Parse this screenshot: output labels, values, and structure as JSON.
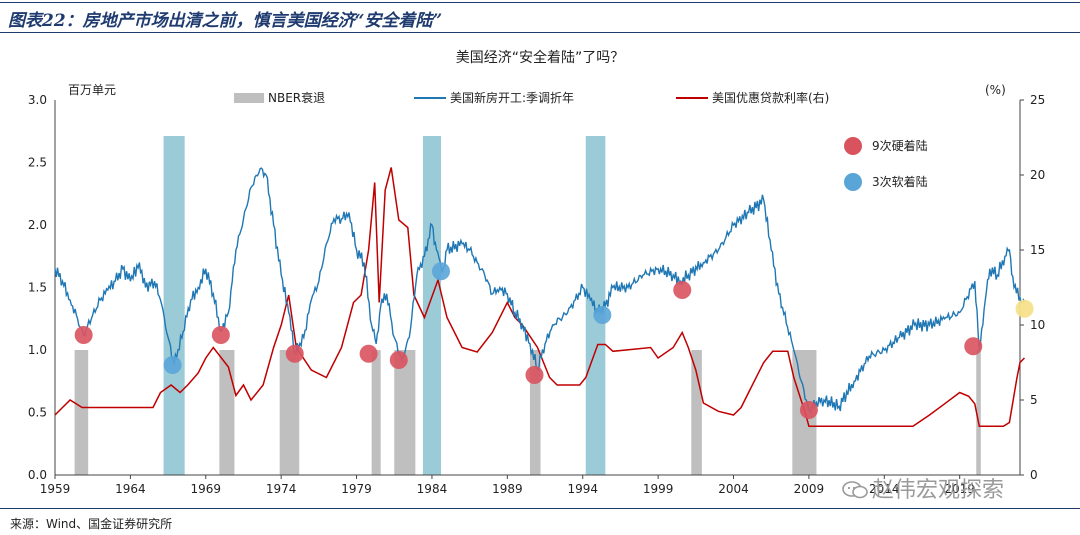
{
  "figure_title": "图表22：房地产市场出清之前，慎言美国经济“安全着陆”",
  "source": "来源：Wind、国金证券研究所",
  "watermark": "赵伟宏观探索",
  "watermark_icon": "wechat-icon",
  "colors": {
    "housing": "#1f77b4",
    "mortgage": "#c00000",
    "recession": "#bfbfbf",
    "soft_band": "#9ccbd8",
    "hard_dot": "#d9535f",
    "soft_dot": "#5aa5d8",
    "current_dot": "#f5e08a"
  },
  "chart_data": {
    "type": "line",
    "title": "美国经济“安全着陆”了吗？",
    "left_axis_label": "百万单元",
    "right_axis_label": "(%)",
    "left_ylim": [
      0,
      3.0
    ],
    "right_ylim": [
      0,
      25
    ],
    "left_ticks": [
      "0.0",
      "0.5",
      "1.0",
      "1.5",
      "2.0",
      "2.5",
      "3.0"
    ],
    "right_ticks": [
      "0",
      "5",
      "10",
      "15",
      "20",
      "25"
    ],
    "x_range": [
      1959,
      2023
    ],
    "x_ticks": [
      "1959",
      "1964",
      "1969",
      "1974",
      "1979",
      "1984",
      "1989",
      "1994",
      "1999",
      "2004",
      "2009",
      "2014",
      "2019"
    ],
    "legend": {
      "recession": "NBER衰退",
      "housing": "美国新房开工:季调折年",
      "mortgage": "美国优惠贷款利率(右)",
      "hard": "9次硬着陆",
      "soft": "3次软着陆"
    },
    "recessions": [
      [
        1960.3,
        1961.2
      ],
      [
        1969.9,
        1970.9
      ],
      [
        1973.9,
        1975.2
      ],
      [
        1980.0,
        1980.6
      ],
      [
        1981.5,
        1982.9
      ],
      [
        1990.5,
        1991.2
      ],
      [
        2001.2,
        2001.9
      ],
      [
        2007.9,
        2009.5
      ],
      [
        2020.1,
        2020.4
      ]
    ],
    "soft_landings": [
      [
        1966.2,
        1967.6
      ],
      [
        1983.4,
        1984.6
      ],
      [
        1994.2,
        1995.5
      ]
    ],
    "housing_series": {
      "name": "美国新房开工:季调折年",
      "points": [
        [
          1959.0,
          1.65
        ],
        [
          1959.5,
          1.55
        ],
        [
          1960.0,
          1.4
        ],
        [
          1960.5,
          1.25
        ],
        [
          1960.9,
          1.12
        ],
        [
          1961.5,
          1.28
        ],
        [
          1962.0,
          1.4
        ],
        [
          1962.5,
          1.48
        ],
        [
          1963.0,
          1.55
        ],
        [
          1963.5,
          1.65
        ],
        [
          1964.0,
          1.55
        ],
        [
          1964.6,
          1.7
        ],
        [
          1965.0,
          1.5
        ],
        [
          1965.6,
          1.55
        ],
        [
          1966.0,
          1.4
        ],
        [
          1966.5,
          1.1
        ],
        [
          1966.9,
          0.88
        ],
        [
          1967.5,
          1.15
        ],
        [
          1968.0,
          1.4
        ],
        [
          1968.5,
          1.5
        ],
        [
          1969.0,
          1.65
        ],
        [
          1969.5,
          1.45
        ],
        [
          1970.0,
          1.15
        ],
        [
          1970.5,
          1.3
        ],
        [
          1971.0,
          1.8
        ],
        [
          1971.5,
          2.05
        ],
        [
          1972.0,
          2.3
        ],
        [
          1972.6,
          2.45
        ],
        [
          1973.0,
          2.4
        ],
        [
          1973.5,
          2.0
        ],
        [
          1974.0,
          1.6
        ],
        [
          1974.5,
          1.3
        ],
        [
          1974.9,
          0.98
        ],
        [
          1975.5,
          1.1
        ],
        [
          1976.0,
          1.4
        ],
        [
          1976.5,
          1.55
        ],
        [
          1977.0,
          1.85
        ],
        [
          1977.5,
          2.05
        ],
        [
          1978.0,
          2.05
        ],
        [
          1978.5,
          2.1
        ],
        [
          1979.0,
          1.8
        ],
        [
          1979.5,
          1.7
        ],
        [
          1980.0,
          1.2
        ],
        [
          1980.3,
          1.05
        ],
        [
          1980.6,
          1.35
        ],
        [
          1981.0,
          1.45
        ],
        [
          1981.5,
          1.1
        ],
        [
          1982.0,
          0.92
        ],
        [
          1982.5,
          1.1
        ],
        [
          1983.0,
          1.6
        ],
        [
          1983.5,
          1.75
        ],
        [
          1984.0,
          2.0
        ],
        [
          1984.3,
          1.8
        ],
        [
          1984.7,
          1.62
        ],
        [
          1985.0,
          1.8
        ],
        [
          1986.0,
          1.85
        ],
        [
          1986.5,
          1.8
        ],
        [
          1987.0,
          1.7
        ],
        [
          1987.5,
          1.6
        ],
        [
          1988.0,
          1.45
        ],
        [
          1988.5,
          1.5
        ],
        [
          1989.0,
          1.45
        ],
        [
          1989.5,
          1.3
        ],
        [
          1990.0,
          1.2
        ],
        [
          1990.5,
          1.05
        ],
        [
          1991.0,
          0.85
        ],
        [
          1991.5,
          1.05
        ],
        [
          1992.0,
          1.2
        ],
        [
          1993.0,
          1.3
        ],
        [
          1993.5,
          1.4
        ],
        [
          1994.0,
          1.5
        ],
        [
          1994.5,
          1.4
        ],
        [
          1995.0,
          1.3
        ],
        [
          1995.5,
          1.35
        ],
        [
          1996.0,
          1.5
        ],
        [
          1997.0,
          1.5
        ],
        [
          1998.0,
          1.6
        ],
        [
          1999.0,
          1.65
        ],
        [
          2000.0,
          1.6
        ],
        [
          2000.5,
          1.55
        ],
        [
          2001.0,
          1.6
        ],
        [
          2002.0,
          1.7
        ],
        [
          2003.0,
          1.8
        ],
        [
          2004.0,
          2.0
        ],
        [
          2005.0,
          2.1
        ],
        [
          2006.0,
          2.2
        ],
        [
          2006.5,
          1.8
        ],
        [
          2007.0,
          1.45
        ],
        [
          2008.0,
          1.0
        ],
        [
          2008.5,
          0.75
        ],
        [
          2009.0,
          0.52
        ],
        [
          2009.5,
          0.58
        ],
        [
          2010.0,
          0.6
        ],
        [
          2011.0,
          0.55
        ],
        [
          2012.0,
          0.75
        ],
        [
          2013.0,
          0.95
        ],
        [
          2014.0,
          1.0
        ],
        [
          2015.0,
          1.1
        ],
        [
          2016.0,
          1.2
        ],
        [
          2017.0,
          1.2
        ],
        [
          2018.0,
          1.25
        ],
        [
          2019.0,
          1.3
        ],
        [
          2020.0,
          1.55
        ],
        [
          2020.3,
          1.0
        ],
        [
          2020.7,
          1.4
        ],
        [
          2021.0,
          1.65
        ],
        [
          2021.5,
          1.6
        ],
        [
          2022.0,
          1.75
        ],
        [
          2022.3,
          1.8
        ],
        [
          2022.6,
          1.5
        ],
        [
          2023.0,
          1.42
        ],
        [
          2023.3,
          1.38
        ]
      ]
    },
    "mortgage_series": {
      "name": "美国优惠贷款利率(右)",
      "points": [
        [
          1959.0,
          4.0
        ],
        [
          1959.5,
          4.5
        ],
        [
          1960.0,
          5.0
        ],
        [
          1960.8,
          4.5
        ],
        [
          1961.0,
          4.5
        ],
        [
          1965.5,
          4.5
        ],
        [
          1966.0,
          5.5
        ],
        [
          1966.7,
          6.0
        ],
        [
          1967.3,
          5.5
        ],
        [
          1967.8,
          6.0
        ],
        [
          1968.5,
          6.8
        ],
        [
          1969.0,
          7.8
        ],
        [
          1969.5,
          8.5
        ],
        [
          1970.5,
          7.2
        ],
        [
          1971.0,
          5.3
        ],
        [
          1971.5,
          6.0
        ],
        [
          1972.0,
          5.0
        ],
        [
          1972.8,
          6.0
        ],
        [
          1973.5,
          8.5
        ],
        [
          1974.0,
          10.0
        ],
        [
          1974.5,
          12.0
        ],
        [
          1975.0,
          8.5
        ],
        [
          1976.0,
          7.0
        ],
        [
          1977.0,
          6.5
        ],
        [
          1978.0,
          8.5
        ],
        [
          1978.8,
          11.5
        ],
        [
          1979.3,
          12.0
        ],
        [
          1979.8,
          15.0
        ],
        [
          1980.2,
          19.5
        ],
        [
          1980.5,
          11.5
        ],
        [
          1980.9,
          19.0
        ],
        [
          1981.3,
          20.5
        ],
        [
          1981.8,
          17.0
        ],
        [
          1982.4,
          16.5
        ],
        [
          1982.8,
          12.0
        ],
        [
          1983.5,
          10.5
        ],
        [
          1984.4,
          13.0
        ],
        [
          1985.0,
          10.5
        ],
        [
          1986.0,
          8.5
        ],
        [
          1987.0,
          8.2
        ],
        [
          1988.0,
          9.5
        ],
        [
          1989.0,
          11.5
        ],
        [
          1989.5,
          10.5
        ],
        [
          1990.0,
          10.0
        ],
        [
          1991.0,
          8.5
        ],
        [
          1991.8,
          6.5
        ],
        [
          1992.3,
          6.0
        ],
        [
          1993.8,
          6.0
        ],
        [
          1994.2,
          6.5
        ],
        [
          1995.0,
          8.7
        ],
        [
          1995.5,
          8.7
        ],
        [
          1996.0,
          8.25
        ],
        [
          1998.5,
          8.5
        ],
        [
          1999.0,
          7.8
        ],
        [
          2000.0,
          8.5
        ],
        [
          2000.6,
          9.5
        ],
        [
          2001.0,
          8.5
        ],
        [
          2001.5,
          7.0
        ],
        [
          2002.0,
          4.8
        ],
        [
          2003.0,
          4.25
        ],
        [
          2004.0,
          4.0
        ],
        [
          2004.5,
          4.5
        ],
        [
          2005.0,
          5.5
        ],
        [
          2006.0,
          7.5
        ],
        [
          2006.6,
          8.25
        ],
        [
          2007.6,
          8.25
        ],
        [
          2008.0,
          6.5
        ],
        [
          2008.8,
          4.0
        ],
        [
          2009.0,
          3.25
        ],
        [
          2015.9,
          3.25
        ],
        [
          2017.0,
          4.0
        ],
        [
          2018.0,
          4.75
        ],
        [
          2019.0,
          5.5
        ],
        [
          2019.6,
          5.25
        ],
        [
          2020.0,
          4.75
        ],
        [
          2020.3,
          3.25
        ],
        [
          2021.9,
          3.25
        ],
        [
          2022.3,
          3.5
        ],
        [
          2022.8,
          6.5
        ],
        [
          2023.0,
          7.5
        ],
        [
          2023.3,
          7.8
        ]
      ]
    },
    "hard_landing_points": [
      [
        1960.9,
        1.12
      ],
      [
        1970.0,
        1.12
      ],
      [
        1974.9,
        0.97
      ],
      [
        1979.8,
        0.97
      ],
      [
        1981.8,
        0.92
      ],
      [
        1990.8,
        0.8
      ],
      [
        2000.6,
        1.48
      ],
      [
        2009.0,
        0.52
      ],
      [
        2019.9,
        1.03
      ]
    ],
    "soft_landing_points": [
      [
        1966.8,
        0.88
      ],
      [
        1984.6,
        1.63
      ],
      [
        1995.3,
        1.28
      ]
    ],
    "current_point": [
      2023.3,
      1.33
    ]
  }
}
